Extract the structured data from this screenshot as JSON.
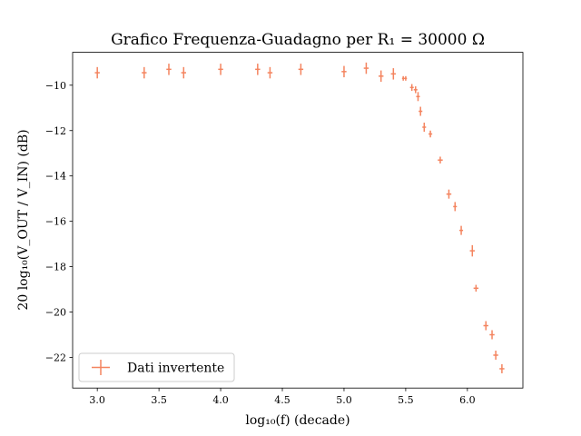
{
  "chart_data": {
    "type": "scatter",
    "title": "Grafico Frequenza-Guadagno per R₁ = 30000 Ω",
    "xlabel": "log₁₀(f) (decade)",
    "ylabel": "20 log₁₀(V_OUT / V_IN) (dB)",
    "xlim": [
      2.8,
      6.45
    ],
    "ylim": [
      -23.35,
      -8.55
    ],
    "xticks": [
      "3.0",
      "3.5",
      "4.0",
      "4.5",
      "5.0",
      "5.5",
      "6.0"
    ],
    "yticks": [
      "−10",
      "−12",
      "−14",
      "−16",
      "−18",
      "−20",
      "−22"
    ],
    "grid": false,
    "legend_position": "lower-left",
    "marker": "errorbar-cross",
    "color": "#f4845f",
    "series": [
      {
        "name": "Dati invertente",
        "x": [
          3.0,
          3.38,
          3.58,
          3.7,
          4.0,
          4.3,
          4.4,
          4.65,
          5.0,
          5.18,
          5.3,
          5.4,
          5.48,
          5.5,
          5.55,
          5.58,
          5.6,
          5.62,
          5.65,
          5.7,
          5.78,
          5.85,
          5.9,
          5.95,
          6.04,
          6.07,
          6.15,
          6.2,
          6.23,
          6.28
        ],
        "y": [
          -9.45,
          -9.45,
          -9.3,
          -9.45,
          -9.3,
          -9.3,
          -9.45,
          -9.3,
          -9.4,
          -9.25,
          -9.6,
          -9.5,
          -9.7,
          -9.7,
          -10.1,
          -10.2,
          -10.5,
          -11.15,
          -11.85,
          -12.15,
          -13.3,
          -14.8,
          -15.35,
          -16.4,
          -17.3,
          -18.95,
          -20.6,
          -21.0,
          -21.9,
          -22.5
        ],
        "yerr": [
          0.25,
          0.25,
          0.25,
          0.25,
          0.25,
          0.25,
          0.25,
          0.25,
          0.25,
          0.25,
          0.25,
          0.25,
          0.1,
          0.1,
          0.15,
          0.15,
          0.2,
          0.2,
          0.2,
          0.15,
          0.15,
          0.2,
          0.2,
          0.2,
          0.25,
          0.15,
          0.2,
          0.2,
          0.2,
          0.2
        ],
        "xerr": [
          0.02,
          0.02,
          0.02,
          0.02,
          0.02,
          0.02,
          0.02,
          0.02,
          0.02,
          0.02,
          0.02,
          0.02,
          0.01,
          0.01,
          0.015,
          0.015,
          0.015,
          0.015,
          0.015,
          0.015,
          0.02,
          0.02,
          0.015,
          0.015,
          0.02,
          0.02,
          0.02,
          0.02,
          0.02,
          0.02
        ]
      }
    ],
    "legend": {
      "label": "Dati invertente"
    }
  }
}
